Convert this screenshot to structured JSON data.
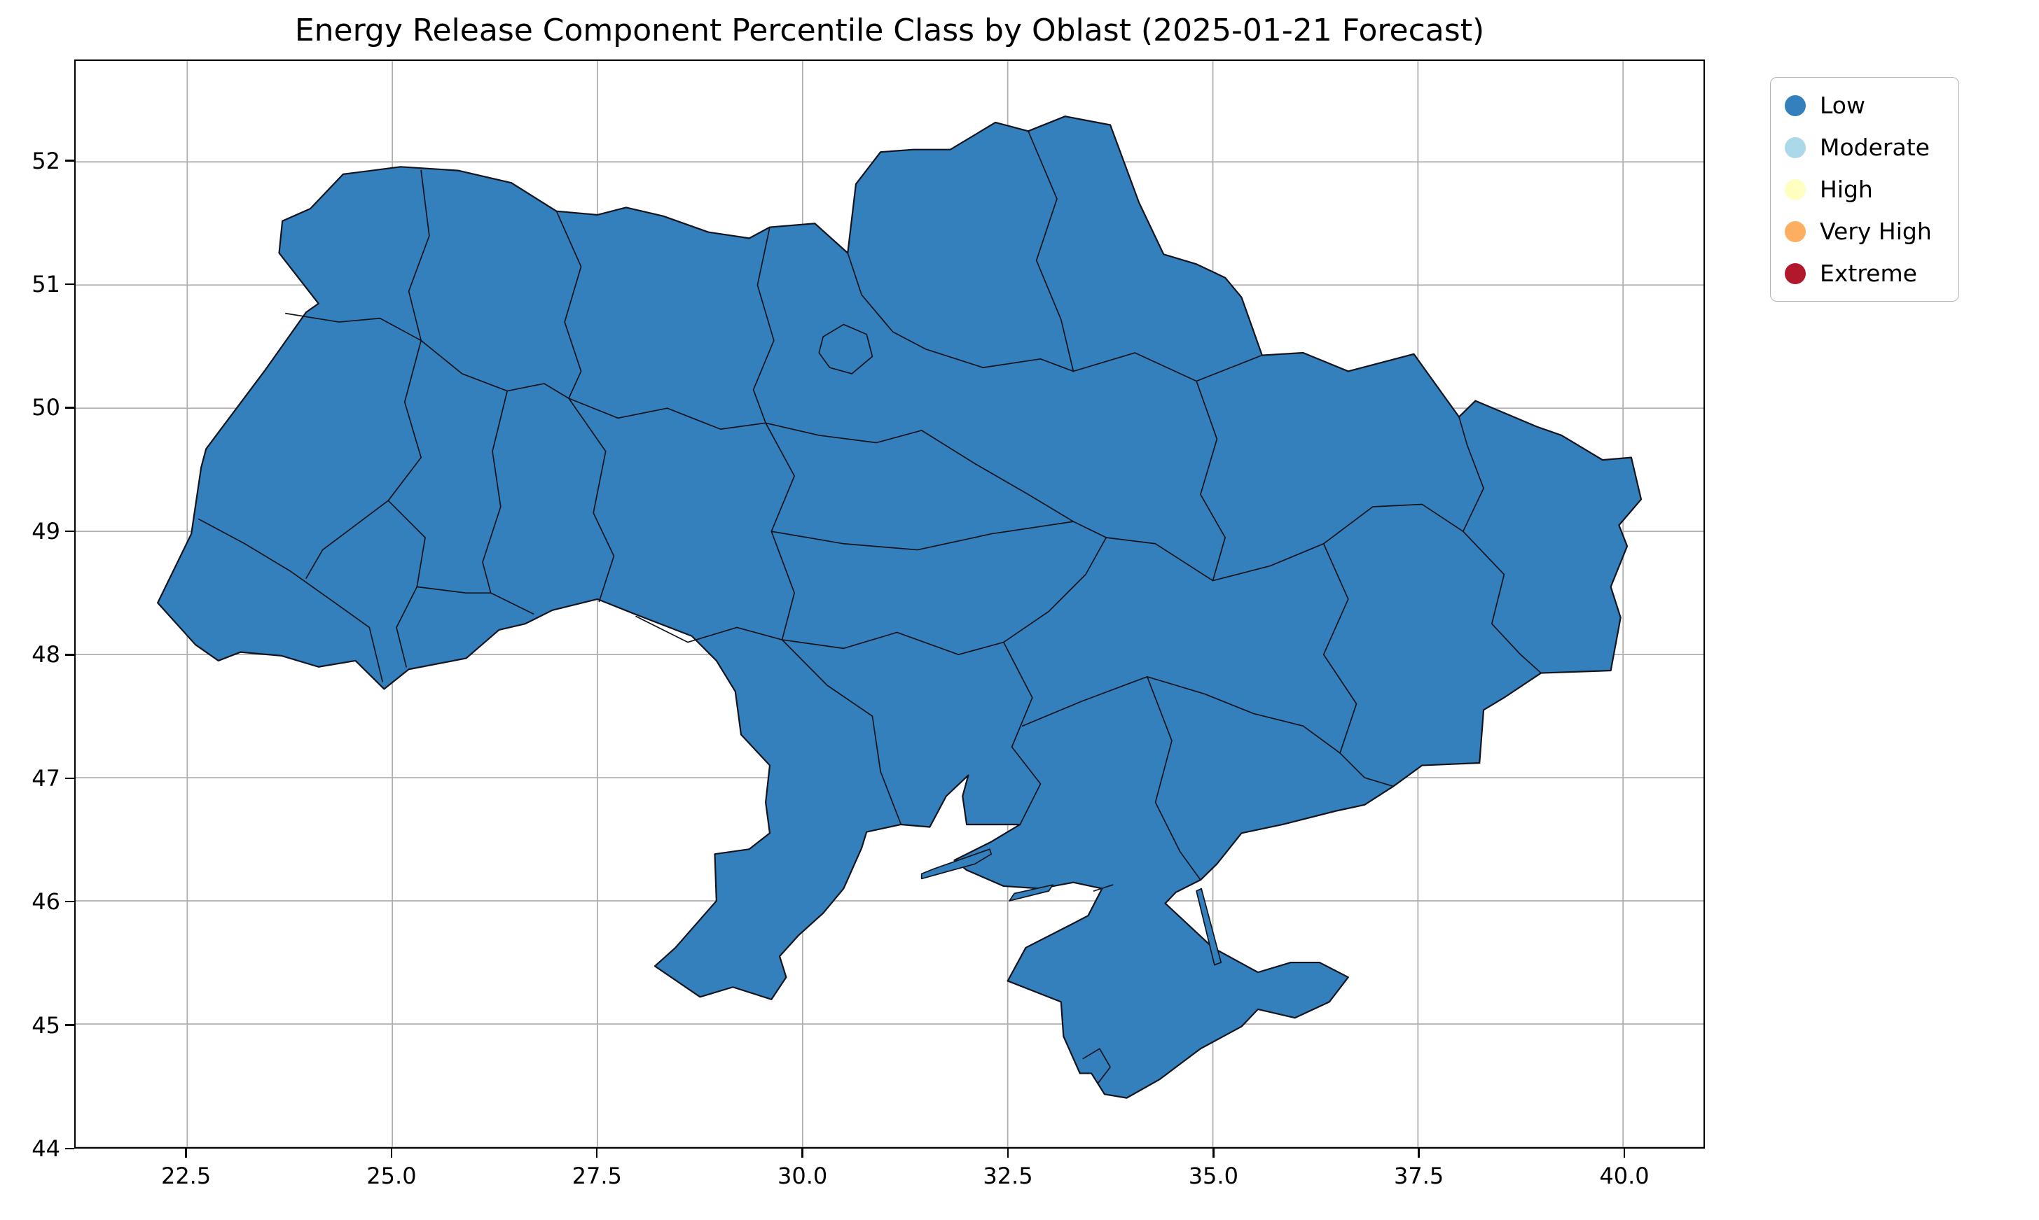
{
  "title": "Energy Release Component Percentile Class by Oblast (2025-01-21 Forecast)",
  "axes": {
    "xlim": [
      21.14,
      40.98
    ],
    "ylim": [
      44.0,
      52.82
    ],
    "x_ticks": [
      22.5,
      25.0,
      27.5,
      30.0,
      32.5,
      35.0,
      37.5,
      40.0
    ],
    "x_tick_labels": [
      "22.5",
      "25.0",
      "27.5",
      "30.0",
      "32.5",
      "35.0",
      "37.5",
      "40.0"
    ],
    "y_ticks": [
      44,
      45,
      46,
      47,
      48,
      49,
      50,
      51,
      52
    ],
    "y_tick_labels": [
      "44",
      "45",
      "46",
      "47",
      "48",
      "49",
      "50",
      "51",
      "52"
    ],
    "grid": true,
    "grid_color": "#b0b0b0",
    "spine_color": "#000000",
    "tick_color": "#000000"
  },
  "legend": {
    "entries": [
      {
        "label": "Low",
        "color": "#3480bd"
      },
      {
        "label": "Moderate",
        "color": "#abd9e9"
      },
      {
        "label": "High",
        "color": "#ffffbf"
      },
      {
        "label": "Very High",
        "color": "#fdae61"
      },
      {
        "label": "Extreme",
        "color": "#b2182b"
      }
    ]
  },
  "map": {
    "fill_class": "Low",
    "fill_color": "#3480bd",
    "border_color": "#14141e",
    "outline": [
      [
        22.14,
        48.42
      ],
      [
        22.55,
        48.98
      ],
      [
        22.67,
        49.52
      ],
      [
        22.73,
        49.67
      ],
      [
        23.45,
        50.31
      ],
      [
        23.95,
        50.78
      ],
      [
        24.1,
        50.85
      ],
      [
        23.62,
        51.26
      ],
      [
        23.66,
        51.52
      ],
      [
        24.0,
        51.62
      ],
      [
        24.4,
        51.9
      ],
      [
        25.1,
        51.96
      ],
      [
        25.8,
        51.93
      ],
      [
        26.45,
        51.83
      ],
      [
        27.0,
        51.6
      ],
      [
        27.5,
        51.57
      ],
      [
        27.85,
        51.63
      ],
      [
        28.3,
        51.56
      ],
      [
        28.85,
        51.43
      ],
      [
        29.35,
        51.38
      ],
      [
        29.6,
        51.47
      ],
      [
        30.15,
        51.5
      ],
      [
        30.55,
        51.26
      ],
      [
        30.65,
        51.82
      ],
      [
        30.95,
        52.08
      ],
      [
        31.35,
        52.1
      ],
      [
        31.8,
        52.1
      ],
      [
        32.35,
        52.32
      ],
      [
        32.75,
        52.25
      ],
      [
        33.2,
        52.37
      ],
      [
        33.75,
        52.3
      ],
      [
        34.1,
        51.67
      ],
      [
        34.4,
        51.25
      ],
      [
        34.8,
        51.17
      ],
      [
        35.15,
        51.06
      ],
      [
        35.35,
        50.9
      ],
      [
        35.6,
        50.43
      ],
      [
        36.1,
        50.45
      ],
      [
        36.65,
        50.3
      ],
      [
        37.45,
        50.44
      ],
      [
        38.0,
        49.93
      ],
      [
        38.2,
        50.06
      ],
      [
        38.95,
        49.85
      ],
      [
        39.25,
        49.78
      ],
      [
        39.75,
        49.58
      ],
      [
        40.1,
        49.6
      ],
      [
        40.22,
        49.26
      ],
      [
        39.95,
        49.05
      ],
      [
        40.05,
        48.88
      ],
      [
        39.85,
        48.55
      ],
      [
        39.97,
        48.3
      ],
      [
        39.85,
        47.87
      ],
      [
        39.0,
        47.85
      ],
      [
        38.55,
        47.65
      ],
      [
        38.3,
        47.55
      ],
      [
        38.25,
        47.12
      ],
      [
        37.55,
        47.1
      ],
      [
        37.2,
        46.93
      ],
      [
        36.85,
        46.78
      ],
      [
        36.5,
        46.73
      ],
      [
        35.85,
        46.62
      ],
      [
        35.35,
        46.55
      ],
      [
        35.05,
        46.3
      ],
      [
        34.85,
        46.17
      ],
      [
        34.55,
        46.07
      ],
      [
        34.42,
        45.98
      ],
      [
        35.0,
        45.62
      ],
      [
        35.55,
        45.42
      ],
      [
        35.95,
        45.5
      ],
      [
        36.3,
        45.5
      ],
      [
        36.65,
        45.38
      ],
      [
        36.42,
        45.18
      ],
      [
        36.0,
        45.05
      ],
      [
        35.55,
        45.12
      ],
      [
        35.35,
        44.98
      ],
      [
        34.85,
        44.8
      ],
      [
        34.35,
        44.55
      ],
      [
        33.95,
        44.4
      ],
      [
        33.68,
        44.43
      ],
      [
        33.52,
        44.6
      ],
      [
        33.38,
        44.6
      ],
      [
        33.18,
        44.9
      ],
      [
        33.15,
        45.18
      ],
      [
        32.5,
        45.35
      ],
      [
        32.72,
        45.62
      ],
      [
        33.25,
        45.8
      ],
      [
        33.48,
        45.88
      ],
      [
        33.65,
        46.1
      ],
      [
        33.3,
        46.15
      ],
      [
        32.9,
        46.1
      ],
      [
        32.45,
        46.12
      ],
      [
        32.0,
        46.25
      ],
      [
        31.85,
        46.33
      ],
      [
        32.3,
        46.48
      ],
      [
        32.65,
        46.62
      ],
      [
        32.0,
        46.62
      ],
      [
        31.95,
        46.85
      ],
      [
        32.02,
        47.02
      ],
      [
        31.75,
        46.85
      ],
      [
        31.55,
        46.6
      ],
      [
        31.2,
        46.62
      ],
      [
        30.78,
        46.56
      ],
      [
        30.72,
        46.43
      ],
      [
        30.5,
        46.1
      ],
      [
        30.25,
        45.9
      ],
      [
        29.95,
        45.72
      ],
      [
        29.72,
        45.55
      ],
      [
        29.8,
        45.38
      ],
      [
        29.62,
        45.2
      ],
      [
        29.15,
        45.3
      ],
      [
        28.75,
        45.22
      ],
      [
        28.2,
        45.47
      ],
      [
        28.45,
        45.62
      ],
      [
        28.95,
        46.0
      ],
      [
        28.93,
        46.38
      ],
      [
        29.35,
        46.42
      ],
      [
        29.6,
        46.55
      ],
      [
        29.55,
        46.8
      ],
      [
        29.6,
        47.1
      ],
      [
        29.25,
        47.35
      ],
      [
        29.18,
        47.7
      ],
      [
        28.95,
        47.95
      ],
      [
        28.65,
        48.15
      ],
      [
        27.95,
        48.33
      ],
      [
        27.5,
        48.45
      ],
      [
        26.95,
        48.36
      ],
      [
        26.62,
        48.25
      ],
      [
        26.3,
        48.2
      ],
      [
        25.9,
        47.97
      ],
      [
        25.2,
        47.88
      ],
      [
        24.9,
        47.72
      ],
      [
        24.55,
        47.95
      ],
      [
        24.1,
        47.9
      ],
      [
        23.65,
        47.99
      ],
      [
        23.15,
        48.02
      ],
      [
        22.88,
        47.95
      ],
      [
        22.6,
        48.08
      ]
    ],
    "islands": [
      [
        [
          31.45,
          46.18
        ],
        [
          32.1,
          46.3
        ],
        [
          32.3,
          46.38
        ],
        [
          32.28,
          46.42
        ],
        [
          31.6,
          46.26
        ],
        [
          31.45,
          46.22
        ]
      ],
      [
        [
          32.52,
          46.0
        ],
        [
          33.0,
          46.08
        ],
        [
          33.05,
          46.13
        ],
        [
          32.58,
          46.06
        ]
      ],
      [
        [
          35.02,
          45.48
        ],
        [
          34.8,
          46.08
        ],
        [
          34.86,
          46.1
        ],
        [
          35.1,
          45.5
        ]
      ]
    ],
    "internal_borders": [
      [
        [
          25.35,
          51.93
        ],
        [
          25.45,
          51.4
        ],
        [
          25.2,
          50.95
        ],
        [
          25.35,
          50.55
        ]
      ],
      [
        [
          23.7,
          50.77
        ],
        [
          24.35,
          50.7
        ],
        [
          24.85,
          50.73
        ],
        [
          25.35,
          50.55
        ]
      ],
      [
        [
          27.0,
          51.6
        ],
        [
          27.3,
          51.15
        ],
        [
          27.1,
          50.7
        ],
        [
          27.3,
          50.3
        ],
        [
          27.15,
          50.08
        ]
      ],
      [
        [
          25.35,
          50.55
        ],
        [
          25.85,
          50.28
        ],
        [
          26.4,
          50.14
        ],
        [
          26.85,
          50.2
        ],
        [
          27.15,
          50.08
        ]
      ],
      [
        [
          29.6,
          51.47
        ],
        [
          29.45,
          51.0
        ],
        [
          29.65,
          50.55
        ],
        [
          29.4,
          50.15
        ],
        [
          29.55,
          49.88
        ]
      ],
      [
        [
          27.15,
          50.08
        ],
        [
          27.75,
          49.92
        ],
        [
          28.35,
          50.0
        ],
        [
          29.0,
          49.83
        ],
        [
          29.55,
          49.88
        ]
      ],
      [
        [
          27.15,
          50.08
        ],
        [
          27.6,
          49.65
        ],
        [
          27.45,
          49.15
        ],
        [
          27.7,
          48.8
        ],
        [
          27.52,
          48.43
        ]
      ],
      [
        [
          26.4,
          50.14
        ],
        [
          26.22,
          49.65
        ],
        [
          26.32,
          49.2
        ],
        [
          26.1,
          48.75
        ],
        [
          26.2,
          48.5
        ]
      ],
      [
        [
          25.35,
          50.55
        ],
        [
          25.15,
          50.05
        ],
        [
          25.35,
          49.6
        ],
        [
          24.95,
          49.25
        ]
      ],
      [
        [
          22.64,
          49.1
        ],
        [
          23.2,
          48.9
        ],
        [
          23.75,
          48.68
        ],
        [
          24.3,
          48.42
        ],
        [
          24.72,
          48.22
        ],
        [
          24.88,
          47.78
        ]
      ],
      [
        [
          24.95,
          49.25
        ],
        [
          24.55,
          49.05
        ],
        [
          24.15,
          48.85
        ],
        [
          23.95,
          48.62
        ]
      ],
      [
        [
          24.95,
          49.25
        ],
        [
          25.4,
          48.95
        ],
        [
          25.3,
          48.55
        ]
      ],
      [
        [
          25.3,
          48.55
        ],
        [
          25.9,
          48.5
        ],
        [
          26.2,
          48.5
        ],
        [
          26.72,
          48.33
        ]
      ],
      [
        [
          25.3,
          48.55
        ],
        [
          25.05,
          48.22
        ],
        [
          25.17,
          47.9
        ]
      ],
      [
        [
          29.55,
          49.88
        ],
        [
          29.9,
          49.45
        ],
        [
          29.62,
          49.0
        ],
        [
          29.9,
          48.5
        ],
        [
          29.75,
          48.12
        ]
      ],
      [
        [
          27.97,
          48.31
        ],
        [
          28.6,
          48.1
        ],
        [
          29.2,
          48.22
        ],
        [
          29.75,
          48.12
        ]
      ],
      [
        [
          29.75,
          48.12
        ],
        [
          30.3,
          47.75
        ],
        [
          30.85,
          47.5
        ],
        [
          30.95,
          47.05
        ],
        [
          31.2,
          46.62
        ]
      ],
      [
        [
          29.55,
          49.88
        ],
        [
          30.2,
          49.78
        ],
        [
          30.9,
          49.72
        ],
        [
          31.45,
          49.82
        ]
      ],
      [
        [
          30.55,
          51.26
        ],
        [
          30.72,
          50.92
        ],
        [
          31.1,
          50.62
        ],
        [
          31.5,
          50.48
        ]
      ],
      [
        [
          31.5,
          50.48
        ],
        [
          32.2,
          50.33
        ],
        [
          32.9,
          50.4
        ],
        [
          33.3,
          50.3
        ]
      ],
      [
        [
          32.75,
          52.25
        ],
        [
          33.1,
          51.7
        ],
        [
          32.85,
          51.2
        ],
        [
          33.15,
          50.72
        ],
        [
          33.3,
          50.3
        ]
      ],
      [
        [
          33.3,
          50.3
        ],
        [
          34.05,
          50.45
        ],
        [
          34.8,
          50.22
        ],
        [
          35.6,
          50.43
        ]
      ],
      [
        [
          31.45,
          49.82
        ],
        [
          32.1,
          49.55
        ],
        [
          32.75,
          49.3
        ],
        [
          33.3,
          49.08
        ],
        [
          33.7,
          48.95
        ]
      ],
      [
        [
          34.8,
          50.22
        ],
        [
          35.05,
          49.75
        ],
        [
          34.85,
          49.3
        ],
        [
          35.15,
          48.95
        ],
        [
          35.0,
          48.6
        ]
      ],
      [
        [
          29.62,
          49.0
        ],
        [
          30.5,
          48.9
        ],
        [
          31.4,
          48.85
        ],
        [
          32.3,
          48.98
        ],
        [
          33.3,
          49.08
        ]
      ],
      [
        [
          29.75,
          48.12
        ],
        [
          30.5,
          48.05
        ],
        [
          31.15,
          48.18
        ],
        [
          31.9,
          48.0
        ],
        [
          32.45,
          48.1
        ]
      ],
      [
        [
          32.45,
          48.1
        ],
        [
          33.0,
          48.35
        ],
        [
          33.45,
          48.65
        ],
        [
          33.7,
          48.95
        ]
      ],
      [
        [
          32.45,
          48.1
        ],
        [
          32.8,
          47.65
        ],
        [
          32.55,
          47.25
        ],
        [
          32.9,
          46.95
        ],
        [
          32.65,
          46.62
        ]
      ],
      [
        [
          32.68,
          47.42
        ],
        [
          33.4,
          47.62
        ],
        [
          34.2,
          47.82
        ],
        [
          34.9,
          47.68
        ],
        [
          35.5,
          47.52
        ],
        [
          36.1,
          47.42
        ],
        [
          36.55,
          47.2
        ]
      ],
      [
        [
          34.2,
          47.82
        ],
        [
          34.5,
          47.3
        ],
        [
          34.3,
          46.8
        ],
        [
          34.6,
          46.4
        ],
        [
          34.85,
          46.17
        ]
      ],
      [
        [
          36.35,
          48.9
        ],
        [
          36.65,
          48.45
        ],
        [
          36.35,
          48.0
        ],
        [
          36.75,
          47.6
        ],
        [
          36.55,
          47.2
        ]
      ],
      [
        [
          35.0,
          48.6
        ],
        [
          35.7,
          48.72
        ],
        [
          36.35,
          48.9
        ]
      ],
      [
        [
          33.7,
          48.95
        ],
        [
          34.3,
          48.9
        ],
        [
          35.0,
          48.6
        ]
      ],
      [
        [
          36.35,
          48.9
        ],
        [
          36.95,
          49.2
        ],
        [
          37.55,
          49.22
        ],
        [
          38.05,
          49.0
        ]
      ],
      [
        [
          38.05,
          49.0
        ],
        [
          38.3,
          49.35
        ],
        [
          38.1,
          49.7
        ],
        [
          38.0,
          49.93
        ]
      ],
      [
        [
          38.05,
          49.0
        ],
        [
          38.55,
          48.65
        ],
        [
          38.4,
          48.25
        ],
        [
          38.75,
          48.0
        ],
        [
          39.0,
          47.85
        ]
      ],
      [
        [
          36.55,
          47.2
        ],
        [
          36.85,
          47.0
        ],
        [
          37.2,
          46.93
        ]
      ],
      [
        [
          33.55,
          46.08
        ],
        [
          33.78,
          46.13
        ]
      ],
      [
        [
          33.42,
          44.72
        ],
        [
          33.62,
          44.8
        ],
        [
          33.75,
          44.65
        ],
        [
          33.6,
          44.52
        ]
      ]
    ],
    "enclaves": [
      [
        [
          30.25,
          50.58
        ],
        [
          30.5,
          50.68
        ],
        [
          30.78,
          50.6
        ],
        [
          30.85,
          50.42
        ],
        [
          30.6,
          50.28
        ],
        [
          30.33,
          50.33
        ],
        [
          30.2,
          50.45
        ]
      ]
    ]
  },
  "chart_data": {
    "type": "heatmap",
    "subtype": "choropleth map of Ukraine oblasts",
    "title": "Energy Release Component Percentile Class by Oblast (2025-01-21 Forecast)",
    "legend_entries": [
      "Low",
      "Moderate",
      "High",
      "Very High",
      "Extreme"
    ],
    "legend_colors": [
      "#3480bd",
      "#abd9e9",
      "#ffffbf",
      "#fdae61",
      "#b2182b"
    ],
    "values_observed": "All oblasts are shaded in the 'Low' percentile class; Moderate, High, Very High and Extreme do not appear on the map.",
    "x_axis": {
      "label": "",
      "range": [
        21.14,
        40.98
      ],
      "ticks": [
        22.5,
        25.0,
        27.5,
        30.0,
        32.5,
        35.0,
        37.5,
        40.0
      ]
    },
    "y_axis": {
      "label": "",
      "range": [
        44.0,
        52.82
      ],
      "ticks": [
        44,
        45,
        46,
        47,
        48,
        49,
        50,
        51,
        52
      ]
    },
    "grid": true,
    "legend_position": "outside upper right"
  }
}
